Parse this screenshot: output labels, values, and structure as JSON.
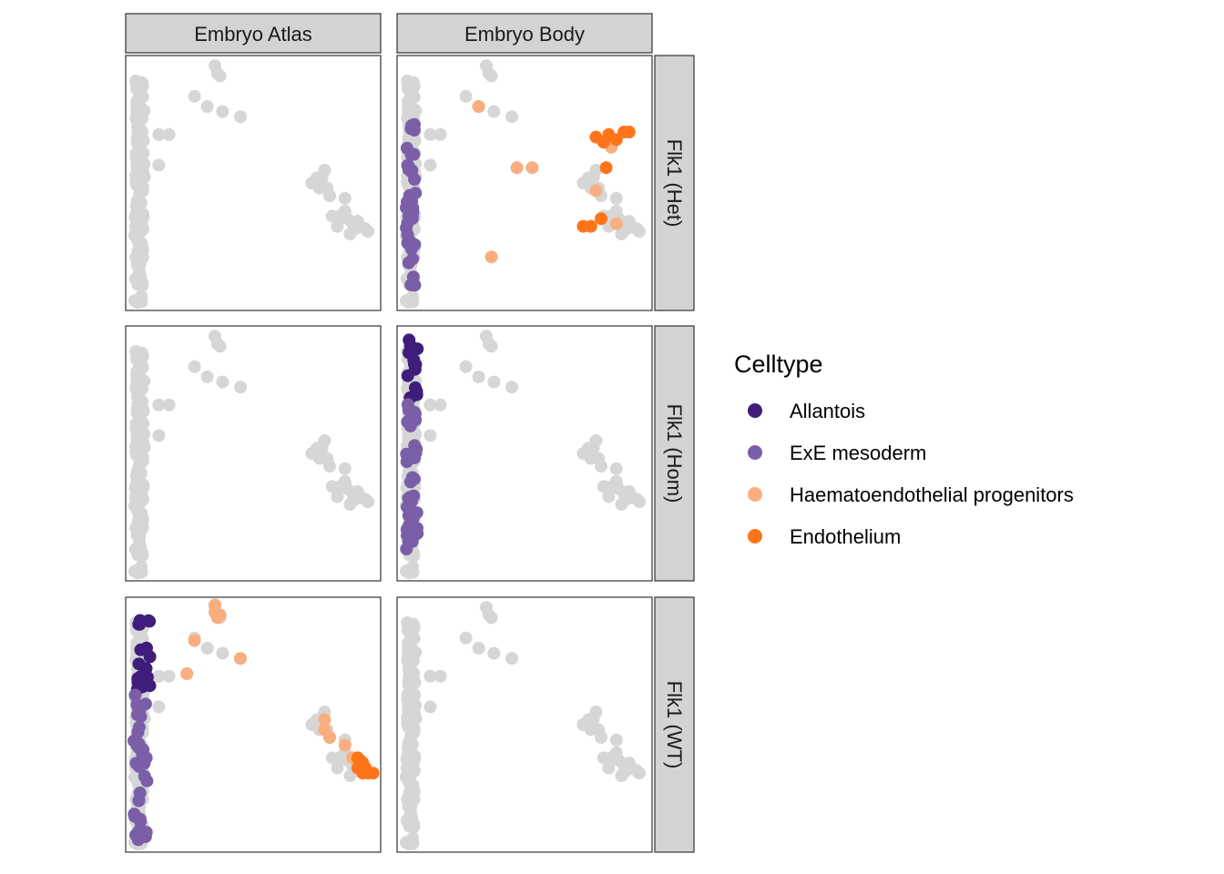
{
  "chart_data": {
    "type": "scatter",
    "facet_columns": [
      "Embryo Atlas",
      "Embryo Body"
    ],
    "facet_rows": [
      "Flk1 (Het)",
      "Flk1 (Hom)",
      "Flk1 (WT)"
    ],
    "axes": {
      "x_ticks_shown": false,
      "y_ticks_shown": false,
      "grid": false
    },
    "legend": {
      "title": "Celltype",
      "placement": "right",
      "entries": [
        {
          "label": "Allantois",
          "color": "#3f1d7a"
        },
        {
          "label": "ExE mesoderm",
          "color": "#7b5ea8"
        },
        {
          "label": "Haematoendothelial progenitors",
          "color": "#f9ae80"
        },
        {
          "label": "Endothelium",
          "color": "#ff7418"
        }
      ]
    },
    "background_color": "#d6d6d6",
    "highlights": {
      "Flk1 (Het)|Embryo Body": [
        {
          "celltype": "ExE mesoderm",
          "x": [
            0.035,
            0.075
          ],
          "y": [
            0.09,
            0.73
          ]
        },
        {
          "celltype": "Haematoendothelial progenitors",
          "points": [
            [
              0.37,
              0.21
            ],
            [
              0.32,
              0.8
            ],
            [
              0.47,
              0.56
            ],
            [
              0.53,
              0.56
            ],
            [
              0.78,
              0.47
            ],
            [
              0.84,
              0.64
            ],
            [
              0.86,
              0.34
            ]
          ]
        },
        {
          "celltype": "Endothelium",
          "points": [
            [
              0.73,
              0.33
            ],
            [
              0.76,
              0.33
            ],
            [
              0.8,
              0.36
            ],
            [
              0.78,
              0.68
            ],
            [
              0.81,
              0.66
            ],
            [
              0.83,
              0.69
            ],
            [
              0.86,
              0.67
            ],
            [
              0.89,
              0.7
            ],
            [
              0.91,
              0.7
            ],
            [
              0.82,
              0.56
            ]
          ]
        }
      ],
      "Flk1 (Hom)|Embryo Body": [
        {
          "celltype": "Allantois",
          "x": [
            0.04,
            0.08
          ],
          "y": [
            0.7,
            0.95
          ]
        },
        {
          "celltype": "ExE mesoderm",
          "x": [
            0.035,
            0.08
          ],
          "y": [
            0.12,
            0.72
          ]
        }
      ],
      "Flk1 (WT)|Embryo Atlas": [
        {
          "celltype": "Allantois",
          "x": [
            0.045,
            0.095
          ],
          "y": [
            0.63,
            0.94
          ]
        },
        {
          "celltype": "ExE mesoderm",
          "x": [
            0.03,
            0.085
          ],
          "y": [
            0.04,
            0.65
          ]
        },
        {
          "celltype": "Haematoendothelial progenitors",
          "points": [
            [
              0.35,
              0.97
            ],
            [
              0.35,
              0.94
            ],
            [
              0.36,
              0.92
            ],
            [
              0.37,
              0.93
            ],
            [
              0.27,
              0.83
            ],
            [
              0.45,
              0.76
            ],
            [
              0.24,
              0.7
            ],
            [
              0.78,
              0.52
            ],
            [
              0.78,
              0.48
            ],
            [
              0.8,
              0.45
            ],
            [
              0.86,
              0.42
            ],
            [
              0.89,
              0.37
            ]
          ]
        },
        {
          "celltype": "Endothelium",
          "points": [
            [
              0.91,
              0.37
            ],
            [
              0.92,
              0.36
            ],
            [
              0.93,
              0.35
            ],
            [
              0.91,
              0.33
            ],
            [
              0.94,
              0.33
            ],
            [
              0.95,
              0.31
            ],
            [
              0.97,
              0.31
            ],
            [
              0.93,
              0.31
            ]
          ]
        }
      ]
    }
  }
}
